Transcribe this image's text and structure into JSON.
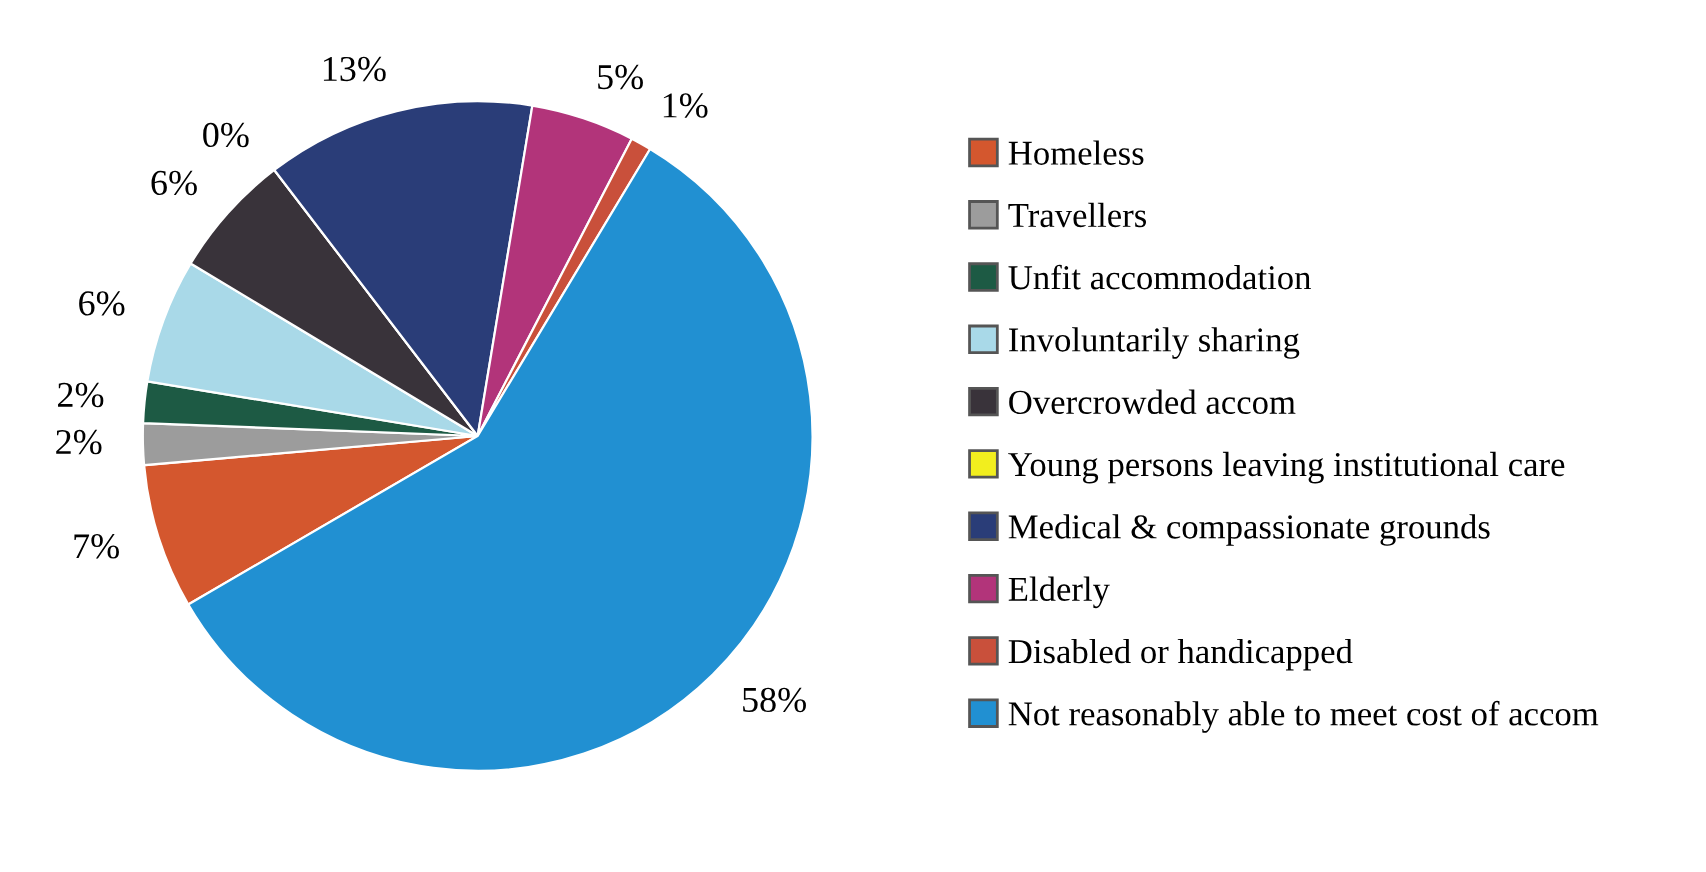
{
  "chart_data": {
    "type": "pie",
    "categories": [
      "Homeless",
      "Travellers",
      "Unfit accommodation",
      "Involuntarily sharing",
      "Overcrowded accom",
      "Young persons leaving institutional care",
      "Medical & compassionate grounds",
      "Elderly",
      "Disabled or handicapped",
      "Not reasonably able to meet cost of accom"
    ],
    "values": [
      7,
      2,
      2,
      6,
      6,
      0,
      13,
      5,
      1,
      58
    ],
    "value_labels": [
      "7%",
      "2%",
      "2%",
      "6%",
      "6%",
      "0%",
      "13%",
      "5%",
      "1%",
      "58%"
    ],
    "colors": [
      "#d4572e",
      "#9c9c9c",
      "#1d5a44",
      "#a9d9e8",
      "#39333a",
      "#f2ee1e",
      "#2a3d78",
      "#b2347a",
      "#c9503b",
      "#2190d2"
    ],
    "legend": "right"
  }
}
